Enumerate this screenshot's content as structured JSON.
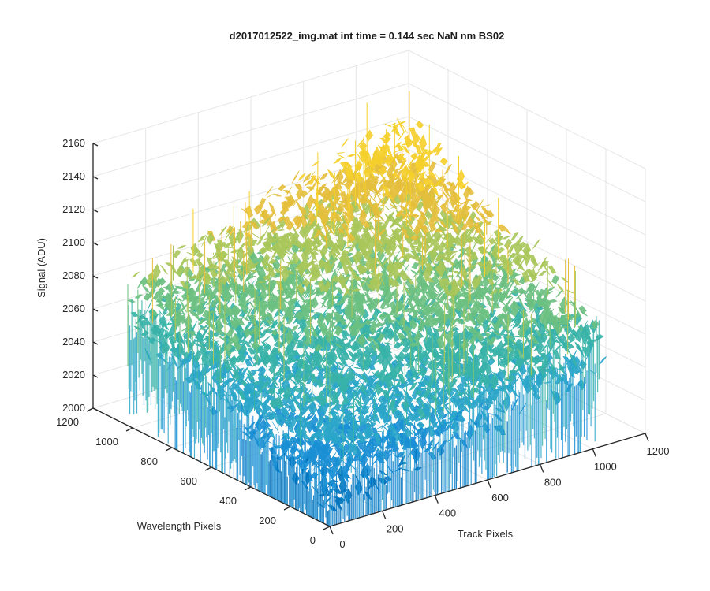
{
  "chart_data": {
    "type": "surface3d",
    "title": "d2017012522_img.mat int time = 0.144 sec  NaN nm BS02",
    "xlabel": "Track Pixels",
    "ylabel": "Wavelength Pixels",
    "zlabel": "Signal (ADU)",
    "xlim": [
      0,
      1200
    ],
    "ylim": [
      0,
      1200
    ],
    "zlim": [
      2000,
      2160
    ],
    "x_ticks": [
      0,
      200,
      400,
      600,
      800,
      1000,
      1200
    ],
    "y_ticks": [
      0,
      200,
      400,
      600,
      800,
      1000,
      1200
    ],
    "z_ticks": [
      2000,
      2020,
      2040,
      2060,
      2080,
      2100,
      2120,
      2140,
      2160
    ],
    "data_extent": {
      "track_max": 1024,
      "wavelength_max": 1024
    },
    "surface_levels": {
      "corner_track0_wave0": 2025,
      "corner_track1024_wave0": 2062,
      "corner_track0_wave1024": 2070,
      "corner_track1024_wave1024": 2128,
      "noise_amplitude_adu": 18
    },
    "colormap": [
      "#0072bd",
      "#1a8fd4",
      "#2ba6c9",
      "#39b3a8",
      "#6cc081",
      "#a9c65a",
      "#e4bf3c",
      "#f5cf2a"
    ],
    "grid": true
  }
}
